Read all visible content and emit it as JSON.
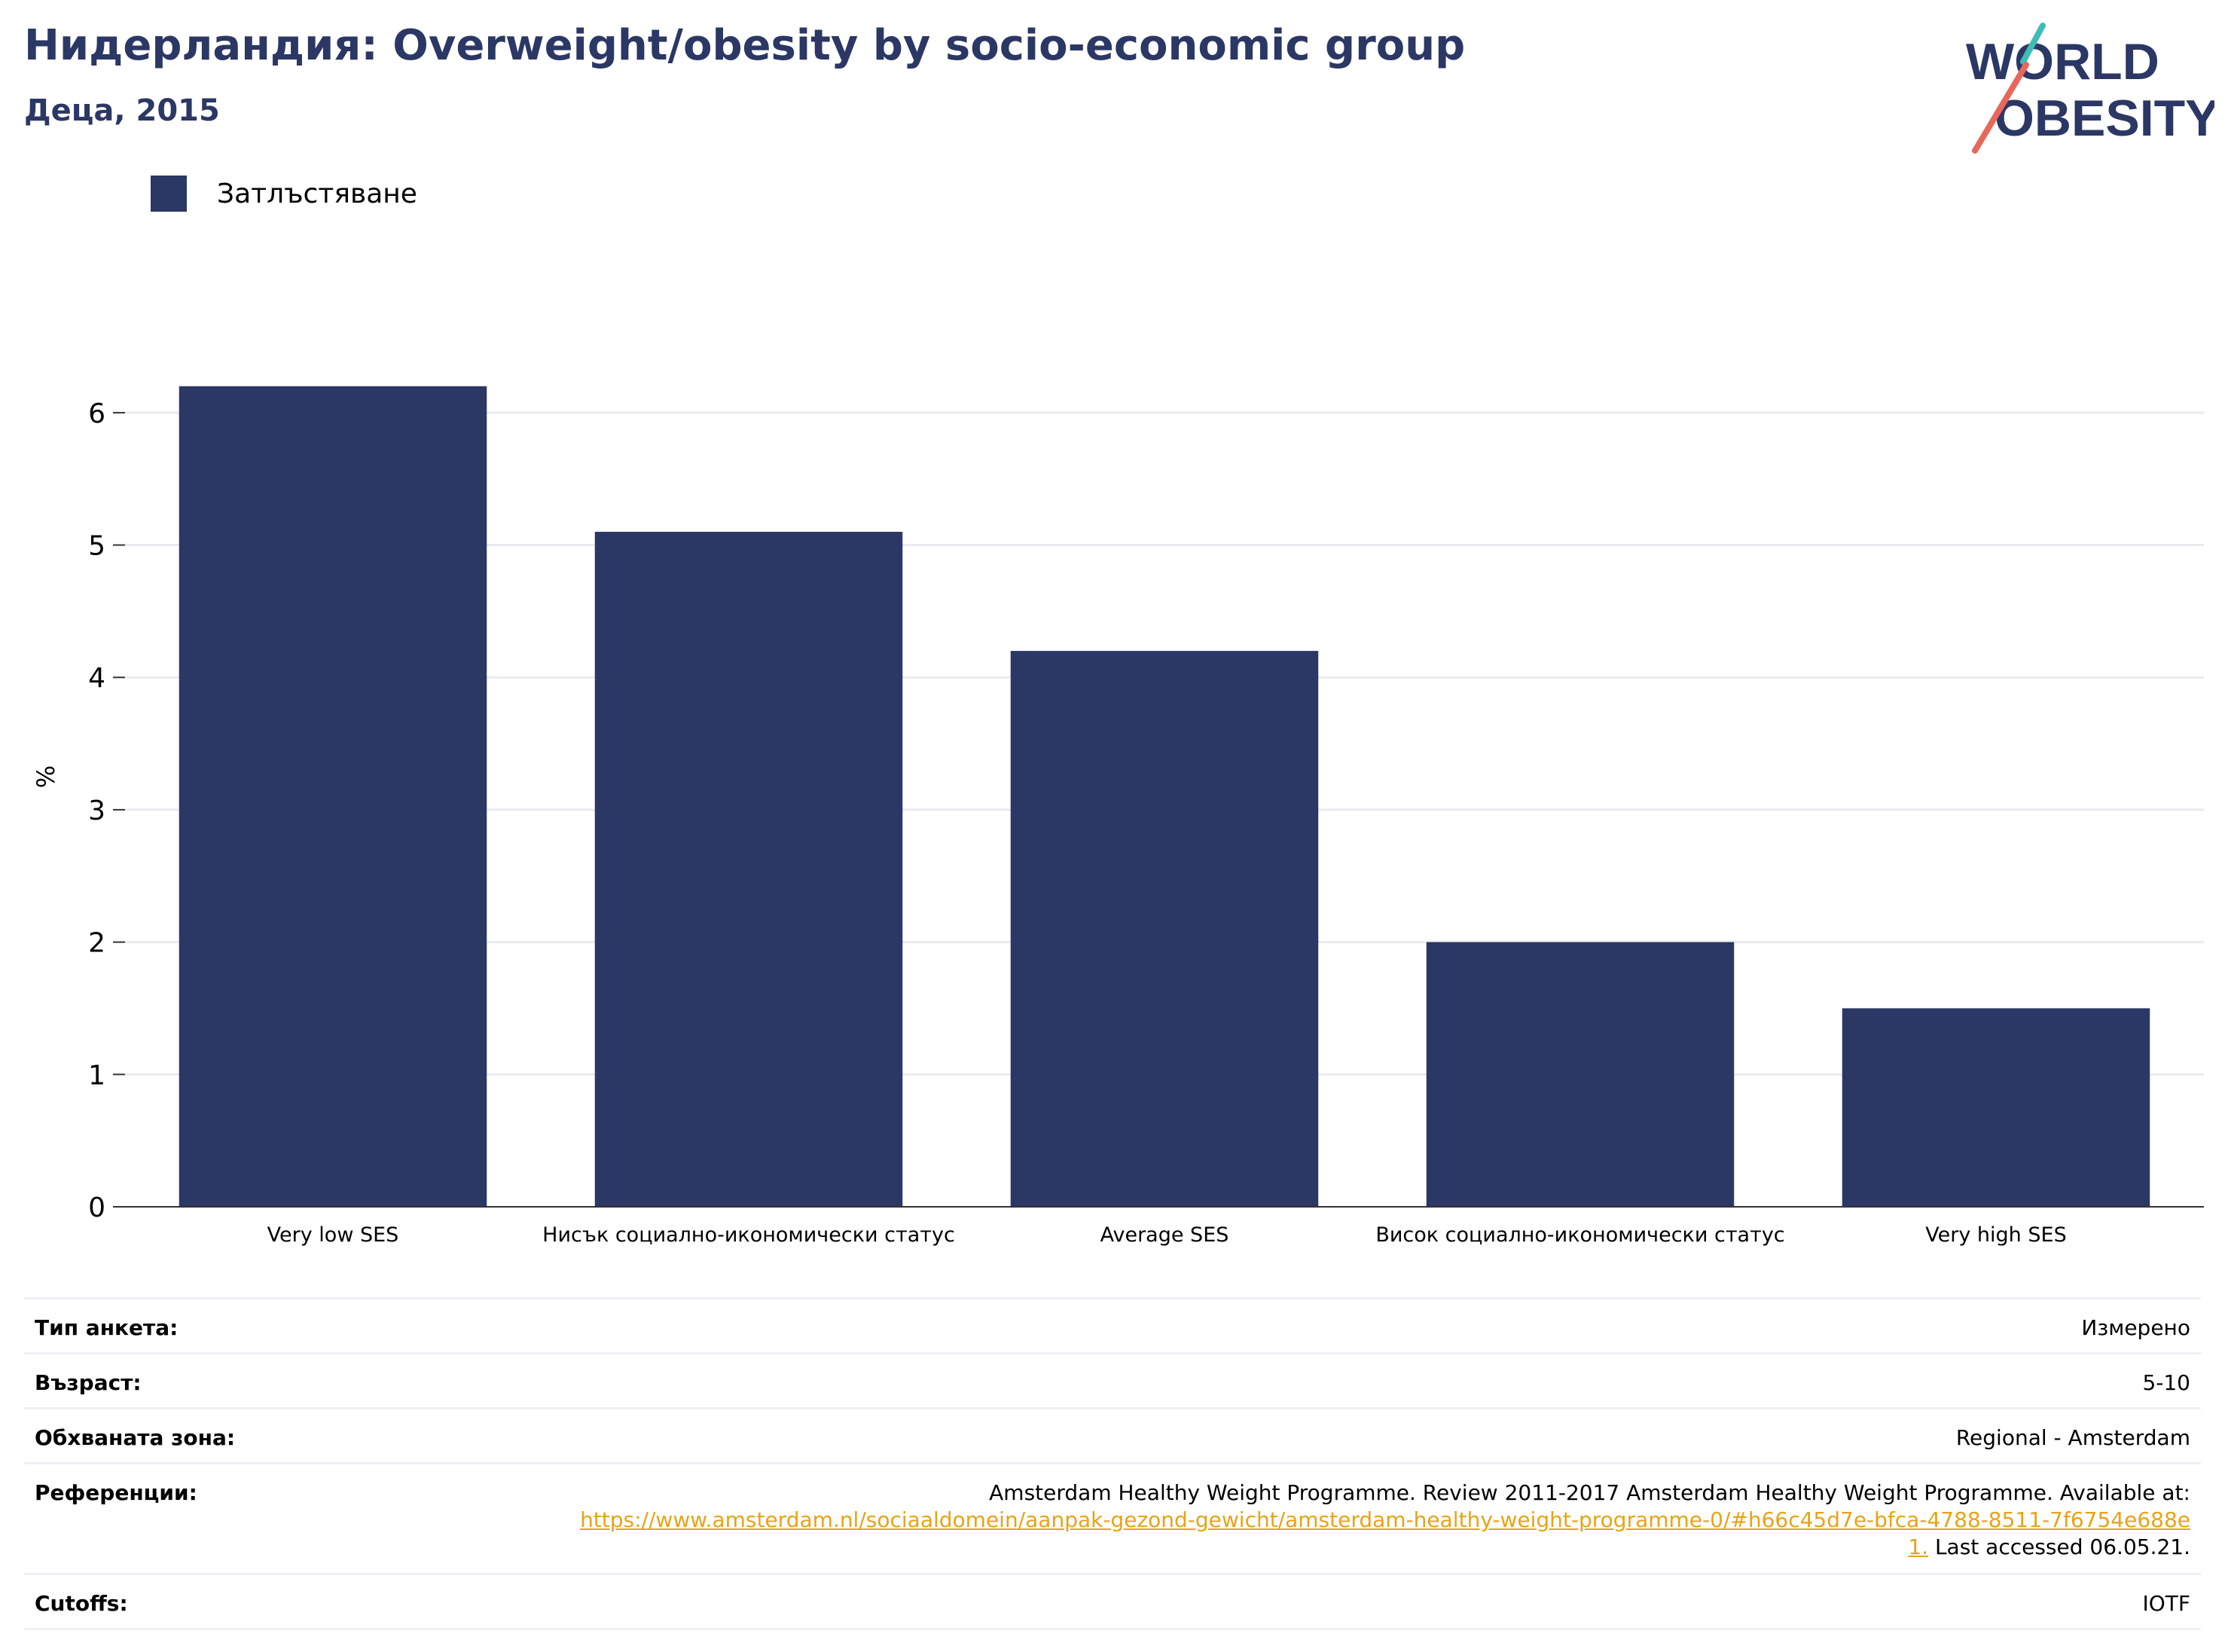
{
  "header": {
    "title": "Нидерландия: Overweight/obesity by socio-economic group",
    "subtitle": "Деца, 2015"
  },
  "logo": {
    "line1": "WORLD",
    "line2": "OBESITY",
    "text_color": "#2b3764",
    "accent_teal": "#3dbdb5",
    "accent_coral": "#e8675a"
  },
  "legend": {
    "items": [
      {
        "label": "Затлъстяване",
        "color": "#2b3764"
      }
    ]
  },
  "chart_data": {
    "type": "bar",
    "title": "",
    "xlabel": "",
    "ylabel": "%",
    "ylim": [
      0,
      6.5
    ],
    "yticks": [
      0,
      1,
      2,
      3,
      4,
      5,
      6
    ],
    "grid": true,
    "legend_position": "top-left",
    "categories": [
      "Very low SES",
      "Нисък социално-икономически статус",
      "Average SES",
      "Висок социално-икономически статус",
      "Very high SES"
    ],
    "series": [
      {
        "name": "Затлъстяване",
        "color": "#2b3764",
        "values": [
          6.2,
          5.1,
          4.2,
          2.0,
          1.5
        ]
      }
    ]
  },
  "info": {
    "survey_type_label": "Тип анкета:",
    "survey_type_value": "Измерено",
    "age_label": "Възраст:",
    "age_value": "5-10",
    "area_label": "Обхваната зона:",
    "area_value": "Regional - Amsterdam",
    "references_label": "Референции:",
    "references_text": "Amsterdam Healthy Weight Programme. Review 2011-2017 Amsterdam Healthy Weight Programme. Available at:",
    "references_link": "https://www.amsterdam.nl/sociaaldomein/aanpak-gezond-gewicht/amsterdam-healthy-weight-programme-0/#h66c45d7e-bfca-4788-8511-7f6754e688e1.",
    "references_suffix": "Last accessed 06.05.21.",
    "cutoffs_label": "Cutoffs:",
    "cutoffs_value": "IOTF"
  }
}
